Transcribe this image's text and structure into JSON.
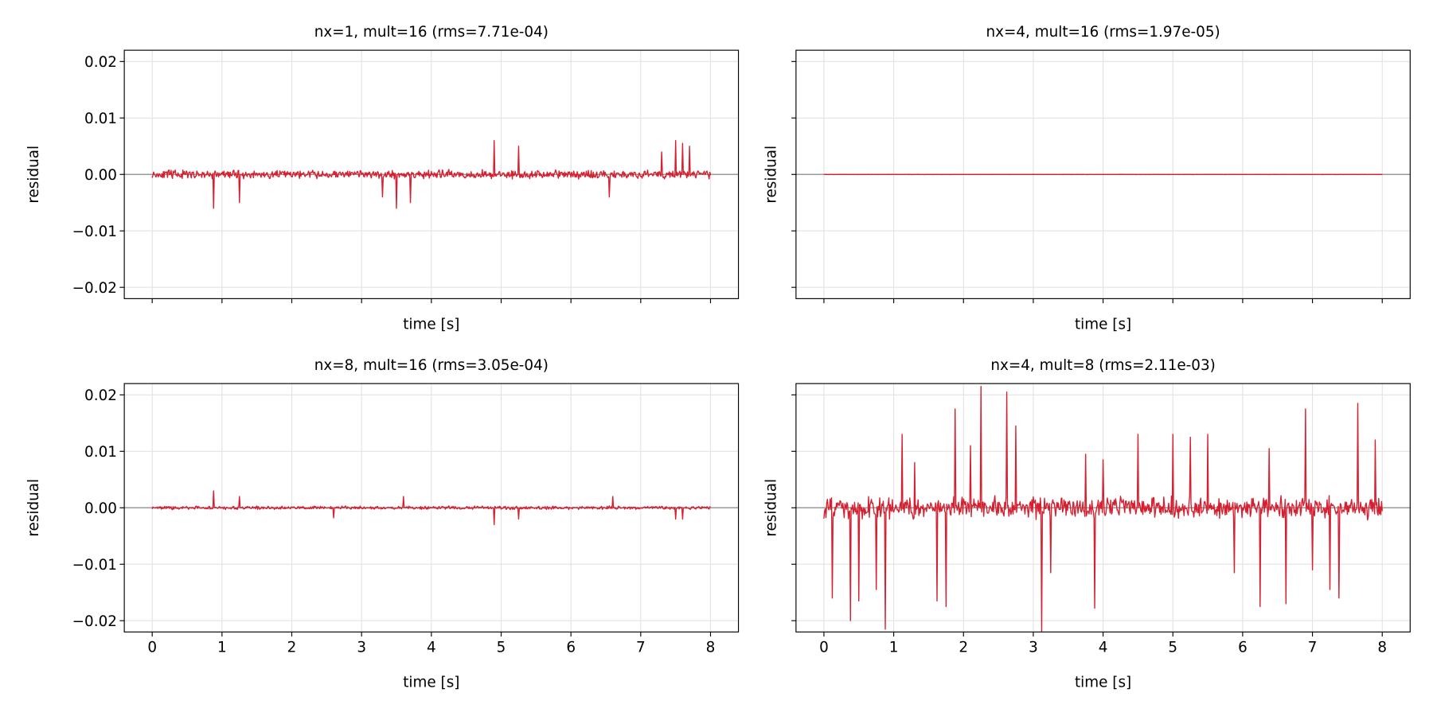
{
  "colors": {
    "trace": "#d42030",
    "zero_line": "#9a9a9a",
    "grid": "#e3e3e3"
  },
  "chart_data": [
    {
      "type": "line",
      "title": "nx=1, mult=16  (rms=7.71e-04)",
      "xlabel": "time [s]",
      "ylabel": "residual",
      "xlim": [
        -0.4,
        8.4
      ],
      "ylim": [
        -0.022,
        0.022
      ],
      "xticks": [
        "0",
        "1",
        "2",
        "3",
        "4",
        "5",
        "6",
        "7",
        "8"
      ],
      "yticks": [
        "0.02",
        "0.01",
        "0.00",
        "−0.01",
        "−0.02"
      ],
      "show_xtick_labels": false,
      "show_ytick_labels": true,
      "grid": true,
      "rms": 0.000771,
      "noise_amplitude": 0.0009,
      "seed": 11,
      "spikes": [
        [
          0.88,
          -0.006
        ],
        [
          1.25,
          -0.005
        ],
        [
          3.3,
          -0.004
        ],
        [
          3.5,
          -0.006
        ],
        [
          3.7,
          -0.005
        ],
        [
          4.9,
          0.006
        ],
        [
          5.25,
          0.005
        ],
        [
          6.55,
          -0.004
        ],
        [
          7.3,
          0.004
        ],
        [
          7.5,
          0.006
        ],
        [
          7.6,
          0.0055
        ],
        [
          7.7,
          0.005
        ]
      ]
    },
    {
      "type": "line",
      "title": "nx=4, mult=16  (rms=1.97e-05)",
      "xlabel": "time [s]",
      "ylabel": "residual",
      "xlim": [
        -0.4,
        8.4
      ],
      "ylim": [
        -0.022,
        0.022
      ],
      "xticks": [
        "0",
        "1",
        "2",
        "3",
        "4",
        "5",
        "6",
        "7",
        "8"
      ],
      "yticks": [
        "0.02",
        "0.01",
        "0.00",
        "−0.01",
        "−0.02"
      ],
      "show_xtick_labels": false,
      "show_ytick_labels": false,
      "grid": true,
      "rms": 1.97e-05,
      "noise_amplitude": 3e-05,
      "seed": 22,
      "spikes": []
    },
    {
      "type": "line",
      "title": "nx=8, mult=16  (rms=3.05e-04)",
      "xlabel": "time [s]",
      "ylabel": "residual",
      "xlim": [
        -0.4,
        8.4
      ],
      "ylim": [
        -0.022,
        0.022
      ],
      "xticks": [
        "0",
        "1",
        "2",
        "3",
        "4",
        "5",
        "6",
        "7",
        "8"
      ],
      "yticks": [
        "0.02",
        "0.01",
        "0.00",
        "−0.01",
        "−0.02"
      ],
      "show_xtick_labels": true,
      "show_ytick_labels": true,
      "grid": true,
      "rms": 0.000305,
      "noise_amplitude": 0.00035,
      "seed": 33,
      "spikes": [
        [
          0.88,
          0.003
        ],
        [
          1.25,
          0.002
        ],
        [
          2.6,
          -0.0018
        ],
        [
          3.6,
          0.002
        ],
        [
          4.9,
          -0.003
        ],
        [
          5.25,
          -0.002
        ],
        [
          6.6,
          0.002
        ],
        [
          7.5,
          -0.002
        ],
        [
          7.6,
          -0.002
        ]
      ]
    },
    {
      "type": "line",
      "title": "nx=4, mult=8  (rms=2.11e-03)",
      "xlabel": "time [s]",
      "ylabel": "residual",
      "xlim": [
        -0.4,
        8.4
      ],
      "ylim": [
        -0.022,
        0.022
      ],
      "xticks": [
        "0",
        "1",
        "2",
        "3",
        "4",
        "5",
        "6",
        "7",
        "8"
      ],
      "yticks": [
        "0.02",
        "0.01",
        "0.00",
        "−0.01",
        "−0.02"
      ],
      "show_xtick_labels": true,
      "show_ytick_labels": false,
      "grid": true,
      "rms": 0.00211,
      "noise_amplitude": 0.0022,
      "seed": 44,
      "spikes": [
        [
          0.12,
          -0.016
        ],
        [
          0.38,
          -0.02
        ],
        [
          0.5,
          -0.0165
        ],
        [
          0.75,
          -0.0145
        ],
        [
          0.88,
          -0.0215
        ],
        [
          1.12,
          0.013
        ],
        [
          1.3,
          0.008
        ],
        [
          1.62,
          -0.0165
        ],
        [
          1.75,
          -0.0175
        ],
        [
          1.88,
          0.0175
        ],
        [
          2.1,
          0.011
        ],
        [
          2.25,
          0.0215
        ],
        [
          2.62,
          0.0205
        ],
        [
          2.75,
          0.0145
        ],
        [
          3.12,
          -0.022
        ],
        [
          3.25,
          -0.0115
        ],
        [
          3.75,
          0.0095
        ],
        [
          3.88,
          -0.0178
        ],
        [
          4.0,
          0.0085
        ],
        [
          4.5,
          0.013
        ],
        [
          5.0,
          0.013
        ],
        [
          5.25,
          0.0125
        ],
        [
          5.5,
          0.013
        ],
        [
          5.88,
          -0.0115
        ],
        [
          6.25,
          -0.0175
        ],
        [
          6.38,
          0.0105
        ],
        [
          6.62,
          -0.017
        ],
        [
          6.9,
          0.0175
        ],
        [
          7.0,
          -0.011
        ],
        [
          7.25,
          -0.0145
        ],
        [
          7.38,
          -0.016
        ],
        [
          7.65,
          0.0185
        ],
        [
          7.9,
          0.012
        ]
      ]
    }
  ]
}
